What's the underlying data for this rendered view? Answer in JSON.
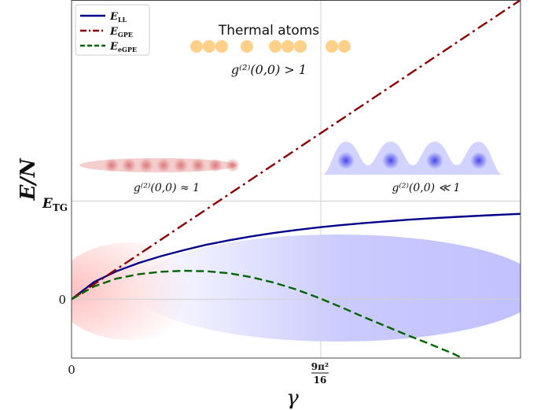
{
  "chart_data": {
    "type": "line",
    "xlabel": "γ",
    "ylabel": "E/N",
    "x_ticks": [
      {
        "x": 0,
        "label": "0"
      },
      {
        "x": 5.5517,
        "label_num": "9π²",
        "label_den": "16"
      }
    ],
    "y_ticks": [
      {
        "y": 0,
        "label": "0"
      },
      {
        "y": 1.0,
        "label": "E_TG"
      }
    ],
    "y_tick_labels": {
      "e_tg_main": "E",
      "e_tg_sub": "TG"
    },
    "xlim": [
      0,
      10
    ],
    "ylim": [
      -0.6,
      3.05
    ],
    "grid": true,
    "legend_position": "top-left",
    "series": [
      {
        "name_main": "E",
        "name_sub": "LL",
        "color": "#00008b",
        "style": "solid",
        "x": [
          0,
          0.5,
          1,
          1.5,
          2,
          2.5,
          3,
          3.5,
          4,
          4.5,
          5,
          5.5,
          6,
          6.5,
          7,
          7.5,
          8,
          8.5,
          9,
          9.5,
          10
        ],
        "y": [
          0,
          0.175,
          0.285,
          0.37,
          0.44,
          0.5,
          0.555,
          0.6,
          0.64,
          0.675,
          0.705,
          0.732,
          0.755,
          0.775,
          0.793,
          0.81,
          0.824,
          0.837,
          0.849,
          0.86,
          0.87
        ]
      },
      {
        "name_main": "E",
        "name_sub": "GPE",
        "color": "#8b0000",
        "style": "dashdot",
        "x": [
          0,
          10
        ],
        "y": [
          0,
          3.05
        ]
      },
      {
        "name_main": "E",
        "name_sub": "eGPE",
        "color": "#006400",
        "style": "dashed",
        "x": [
          0,
          0.5,
          1,
          1.5,
          2,
          2.5,
          3,
          3.5,
          4,
          4.5,
          5,
          5.5,
          6,
          6.5,
          7,
          7.5,
          8,
          8.5,
          8.7
        ],
        "y": [
          0,
          0.13,
          0.21,
          0.255,
          0.28,
          0.29,
          0.285,
          0.265,
          0.225,
          0.17,
          0.1,
          0.015,
          -0.08,
          -0.18,
          -0.275,
          -0.37,
          -0.46,
          -0.555,
          -0.6
        ]
      }
    ],
    "annotations": {
      "thermal_title": "Thermal atoms",
      "thermal_g2": "g⁽²⁾(0,0) > 1",
      "bec_g2": "g⁽²⁾(0,0) ≈ 1",
      "tg_g2": "g⁽²⁾(0,0) ≪ 1"
    },
    "colors": {
      "red_region": "#ff9a9a",
      "blue_region": "#9a9aff",
      "thermal_dot": "#ffd08a",
      "bec_dot": "#e07a7a",
      "tg_bump": "#c8c8ff",
      "tg_dot": "#5050ee"
    }
  }
}
